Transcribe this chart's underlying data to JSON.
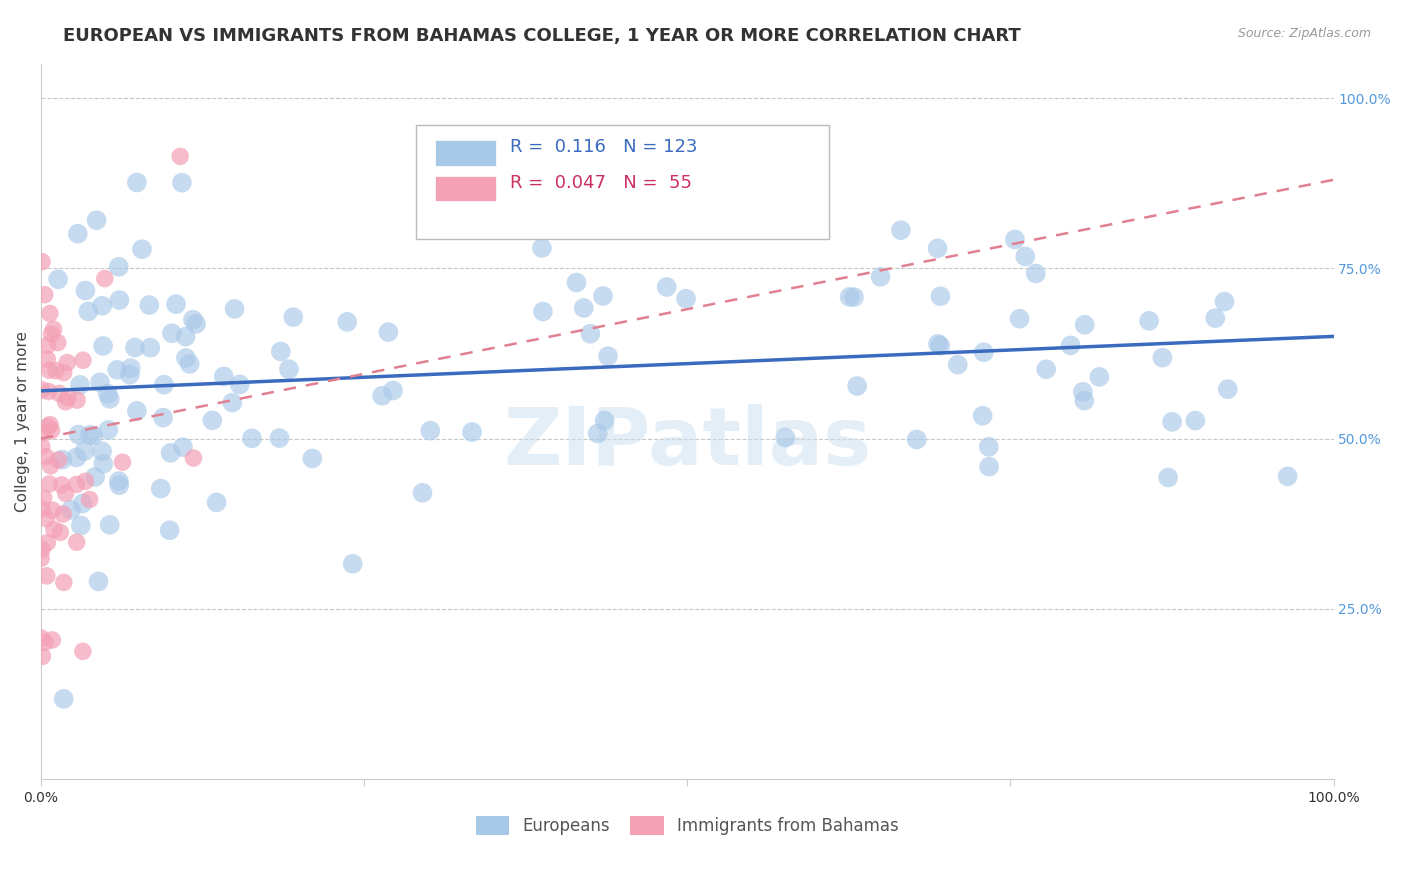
{
  "title": "EUROPEAN VS IMMIGRANTS FROM BAHAMAS COLLEGE, 1 YEAR OR MORE CORRELATION CHART",
  "source": "Source: ZipAtlas.com",
  "ylabel": "College, 1 year or more",
  "ylabel_right_ticks": [
    "100.0%",
    "75.0%",
    "50.0%",
    "25.0%"
  ],
  "ylabel_right_vals": [
    1.0,
    0.75,
    0.5,
    0.25
  ],
  "r_blue": 0.116,
  "n_blue": 123,
  "r_pink": 0.047,
  "n_pink": 55,
  "blue_color": "#a8c8e8",
  "pink_color": "#f4a0b5",
  "blue_line_color": "#3a6bbf",
  "pink_line_color": "#e08090",
  "legend_blue_label": "Europeans",
  "legend_pink_label": "Immigrants from Bahamas",
  "watermark": "ZIPatlas",
  "seed": 42,
  "xlim": [
    0.0,
    1.0
  ],
  "ylim": [
    0.0,
    1.05
  ],
  "blue_intercept": 0.57,
  "blue_slope": 0.08,
  "pink_intercept": 0.5,
  "pink_slope": 0.38,
  "grid_color": "#c8c8c8",
  "background_color": "#ffffff",
  "title_fontsize": 13,
  "axis_label_fontsize": 11,
  "tick_fontsize": 10,
  "legend_fontsize": 13,
  "right_tick_color": "#5599dd"
}
